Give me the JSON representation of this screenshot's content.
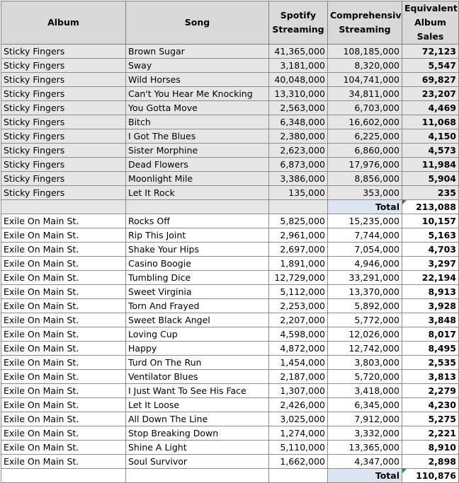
{
  "headers": {
    "album": "Album",
    "song": "Song",
    "spotify": "Spotify Streaming",
    "comprehensive": "Comprehensive Streaming",
    "eas": "Equivalent Album Sales"
  },
  "sections": [
    {
      "rows": [
        {
          "album": "Sticky Fingers",
          "song": "Brown Sugar",
          "spotify": "41,365,000",
          "comprehensive": "108,185,000",
          "eas": "72,123"
        },
        {
          "album": "Sticky Fingers",
          "song": "Sway",
          "spotify": "3,181,000",
          "comprehensive": "8,320,000",
          "eas": "5,547"
        },
        {
          "album": "Sticky Fingers",
          "song": "Wild Horses",
          "spotify": "40,048,000",
          "comprehensive": "104,741,000",
          "eas": "69,827"
        },
        {
          "album": "Sticky Fingers",
          "song": "Can't You Hear Me Knocking",
          "spotify": "13,310,000",
          "comprehensive": "34,811,000",
          "eas": "23,207"
        },
        {
          "album": "Sticky Fingers",
          "song": "You Gotta Move",
          "spotify": "2,563,000",
          "comprehensive": "6,703,000",
          "eas": "4,469"
        },
        {
          "album": "Sticky Fingers",
          "song": "Bitch",
          "spotify": "6,348,000",
          "comprehensive": "16,602,000",
          "eas": "11,068"
        },
        {
          "album": "Sticky Fingers",
          "song": "I Got The Blues",
          "spotify": "2,380,000",
          "comprehensive": "6,225,000",
          "eas": "4,150"
        },
        {
          "album": "Sticky Fingers",
          "song": "Sister Morphine",
          "spotify": "2,623,000",
          "comprehensive": "6,860,000",
          "eas": "4,573"
        },
        {
          "album": "Sticky Fingers",
          "song": "Dead Flowers",
          "spotify": "6,873,000",
          "comprehensive": "17,976,000",
          "eas": "11,984"
        },
        {
          "album": "Sticky Fingers",
          "song": "Moonlight Mile",
          "spotify": "3,386,000",
          "comprehensive": "8,856,000",
          "eas": "5,904"
        },
        {
          "album": "Sticky Fingers",
          "song": "Let It Rock",
          "spotify": "135,000",
          "comprehensive": "353,000",
          "eas": "235"
        }
      ],
      "total_label": "Total",
      "total_value": "213,088"
    },
    {
      "rows": [
        {
          "album": "Exile On Main St.",
          "song": "Rocks Off",
          "spotify": "5,825,000",
          "comprehensive": "15,235,000",
          "eas": "10,157"
        },
        {
          "album": "Exile On Main St.",
          "song": "Rip This Joint",
          "spotify": "2,961,000",
          "comprehensive": "7,744,000",
          "eas": "5,163"
        },
        {
          "album": "Exile On Main St.",
          "song": "Shake Your Hips",
          "spotify": "2,697,000",
          "comprehensive": "7,054,000",
          "eas": "4,703"
        },
        {
          "album": "Exile On Main St.",
          "song": "Casino Boogie",
          "spotify": "1,891,000",
          "comprehensive": "4,946,000",
          "eas": "3,297"
        },
        {
          "album": "Exile On Main St.",
          "song": "Tumbling Dice",
          "spotify": "12,729,000",
          "comprehensive": "33,291,000",
          "eas": "22,194"
        },
        {
          "album": "Exile On Main St.",
          "song": "Sweet Virginia",
          "spotify": "5,112,000",
          "comprehensive": "13,370,000",
          "eas": "8,913"
        },
        {
          "album": "Exile On Main St.",
          "song": "Torn And Frayed",
          "spotify": "2,253,000",
          "comprehensive": "5,892,000",
          "eas": "3,928"
        },
        {
          "album": "Exile On Main St.",
          "song": "Sweet Black Angel",
          "spotify": "2,207,000",
          "comprehensive": "5,772,000",
          "eas": "3,848"
        },
        {
          "album": "Exile On Main St.",
          "song": "Loving Cup",
          "spotify": "4,598,000",
          "comprehensive": "12,026,000",
          "eas": "8,017"
        },
        {
          "album": "Exile On Main St.",
          "song": "Happy",
          "spotify": "4,872,000",
          "comprehensive": "12,742,000",
          "eas": "8,495"
        },
        {
          "album": "Exile On Main St.",
          "song": "Turd On The Run",
          "spotify": "1,454,000",
          "comprehensive": "3,803,000",
          "eas": "2,535"
        },
        {
          "album": "Exile On Main St.",
          "song": "Ventilator Blues",
          "spotify": "2,187,000",
          "comprehensive": "5,720,000",
          "eas": "3,813"
        },
        {
          "album": "Exile On Main St.",
          "song": "I Just Want To See His Face",
          "spotify": "1,307,000",
          "comprehensive": "3,418,000",
          "eas": "2,279"
        },
        {
          "album": "Exile On Main St.",
          "song": "Let It Loose",
          "spotify": "2,426,000",
          "comprehensive": "6,345,000",
          "eas": "4,230"
        },
        {
          "album": "Exile On Main St.",
          "song": "All Down The Line",
          "spotify": "3,025,000",
          "comprehensive": "7,912,000",
          "eas": "5,275"
        },
        {
          "album": "Exile On Main St.",
          "song": "Stop Breaking Down",
          "spotify": "1,274,000",
          "comprehensive": "3,332,000",
          "eas": "2,221"
        },
        {
          "album": "Exile On Main St.",
          "song": "Shine A Light",
          "spotify": "5,110,000",
          "comprehensive": "13,365,000",
          "eas": "8,910"
        },
        {
          "album": "Exile On Main St.",
          "song": "Soul Survivor",
          "spotify": "1,662,000",
          "comprehensive": "4,347,000",
          "eas": "2,898"
        }
      ],
      "total_label": "Total",
      "total_value": "110,876"
    }
  ],
  "colors": {
    "header_bg": "#d9d9d9",
    "first_section_bg": "#e6e6e6",
    "total_label_bg": "#dce6f1",
    "comment_marker": "#2e8b2e"
  }
}
